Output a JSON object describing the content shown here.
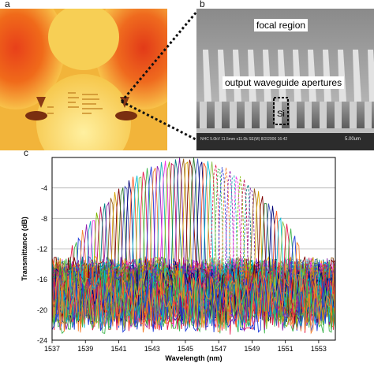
{
  "figure": {
    "panel_a_label": "a",
    "panel_b_label": "b",
    "panel_c_label": "c"
  },
  "panel_b": {
    "focal_label": "focal region",
    "apertures_label": "output waveguide apertures",
    "si_label": "Si",
    "sem_info": "NHC 5.0kV 11.5mm x11.0k SE(M) 8/2/2006 16:42",
    "scale_bar": "5.00um"
  },
  "chart_data": {
    "type": "line",
    "xlabel": "Wavelength (nm)",
    "ylabel": "Transmittance (dB)",
    "xlim": [
      1537,
      1554
    ],
    "ylim": [
      -24,
      0
    ],
    "xticks": [
      "1537",
      "1539",
      "1541",
      "1543",
      "1545",
      "1547",
      "1549",
      "1551",
      "1553"
    ],
    "yticks": [
      "-4",
      "-8",
      "-12",
      "-16",
      "-20",
      "-24"
    ],
    "grid": true,
    "legend": "none",
    "channels": {
      "count": 64,
      "first_peak_nm": 1538.2,
      "spacing_nm": 0.215,
      "envelope_center_nm": 1545.1,
      "envelope_peak_db": 0,
      "envelope_edge_db": -12.5,
      "floor_db": -20,
      "dashed_from_index": 40,
      "dashed_to_index": 50
    },
    "colors": [
      "#e6194b",
      "#3cb44b",
      "#1f3bd8",
      "#f58231",
      "#911eb4",
      "#1ab0b8",
      "#f032e6",
      "#7fb800",
      "#c2185b",
      "#008080",
      "#7b1fa2",
      "#9a6324",
      "#d4a000",
      "#800000",
      "#2e7d32",
      "#3f51b5",
      "#000075",
      "#ff5722",
      "#00bcd4",
      "#8bc34a"
    ]
  }
}
